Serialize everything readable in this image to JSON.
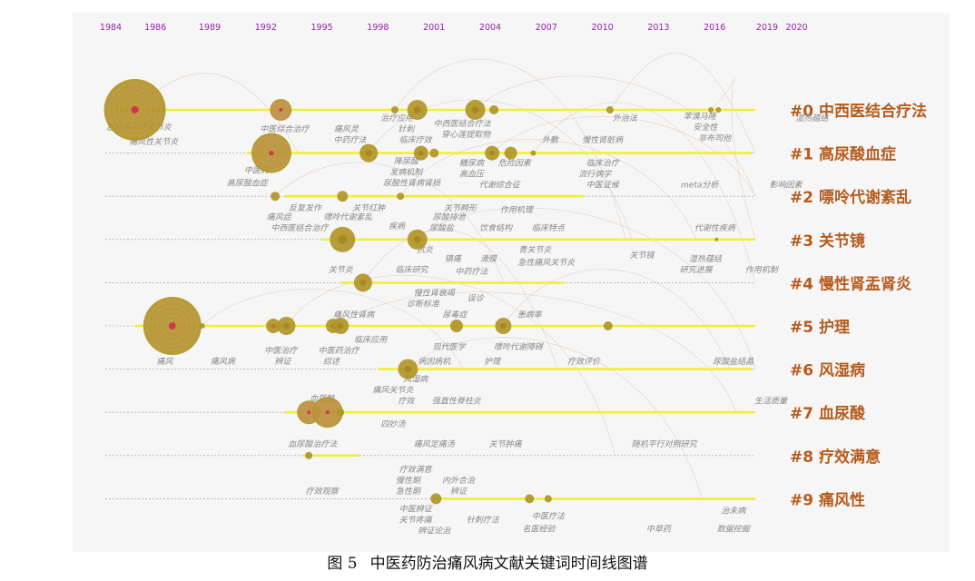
{
  "figure": {
    "caption_number": "图 5",
    "caption_text": "中医药防治痛风病文献关键词时间线图谱"
  },
  "colors": {
    "year_label": "#9a1fa8",
    "timeline": "#f0ef3a",
    "cluster_label": "#b55c1e",
    "node_fill": "#b19527",
    "node_core": "#d2374e",
    "keyword_text": "#888888",
    "link": "#d9b8a0"
  },
  "chart_data": {
    "type": "timeline",
    "years": [
      1984,
      1986,
      1989,
      1992,
      1995,
      1998,
      2001,
      2004,
      2007,
      2010,
      2013,
      2016,
      2019,
      2020
    ],
    "clusters": [
      {
        "label": "#0 中西医结合疗法",
        "start": 1984,
        "end": 2020
      },
      {
        "label": "#1 高尿酸血症",
        "start": 1991,
        "end": 2018
      },
      {
        "label": "#2 嘌呤代谢紊乱",
        "start": 1993,
        "end": 2009
      },
      {
        "label": "#3 关节镜",
        "start": 1995,
        "end": 2020
      },
      {
        "label": "#4 慢性肾盂肾炎",
        "start": 1996,
        "end": 2008
      },
      {
        "label": "#5 护理",
        "start": 1985,
        "end": 2019
      },
      {
        "label": "#6 风湿病",
        "start": 1998,
        "end": 2018
      },
      {
        "label": "#7 血尿酸",
        "start": 1993,
        "end": 2020
      },
      {
        "label": "#8 疗效满意",
        "start": 1994,
        "end": 1997
      },
      {
        "label": "#9 痛风性",
        "start": 2001,
        "end": 2020
      }
    ],
    "nodes": [
      {
        "cluster": 0,
        "year": 1985,
        "size": 34,
        "ring": true
      },
      {
        "cluster": 0,
        "year": 1992.8,
        "size": 12,
        "ring": true
      },
      {
        "cluster": 0,
        "year": 1998.9,
        "size": 4
      },
      {
        "cluster": 0,
        "year": 2000.1,
        "size": 11
      },
      {
        "cluster": 0,
        "year": 2003.2,
        "size": 11
      },
      {
        "cluster": 0,
        "year": 2004.2,
        "size": 5
      },
      {
        "cluster": 0,
        "year": 2010.4,
        "size": 4
      },
      {
        "cluster": 0,
        "year": 2016.2,
        "size": 3
      },
      {
        "cluster": 0,
        "year": 2015.8,
        "size": 3
      },
      {
        "cluster": 1,
        "year": 1992.3,
        "size": 22,
        "ring": true
      },
      {
        "cluster": 1,
        "year": 1997.5,
        "size": 10
      },
      {
        "cluster": 1,
        "year": 2000.3,
        "size": 8
      },
      {
        "cluster": 1,
        "year": 2004.1,
        "size": 8
      },
      {
        "cluster": 1,
        "year": 2005.1,
        "size": 7
      },
      {
        "cluster": 1,
        "year": 2006.3,
        "size": 3
      },
      {
        "cluster": 1,
        "year": 2001.0,
        "size": 5
      },
      {
        "cluster": 2,
        "year": 1992.5,
        "size": 5
      },
      {
        "cluster": 2,
        "year": 1996.1,
        "size": 6
      },
      {
        "cluster": 2,
        "year": 1999.2,
        "size": 4
      },
      {
        "cluster": 3,
        "year": 1996.1,
        "size": 14
      },
      {
        "cluster": 3,
        "year": 2000.1,
        "size": 11
      },
      {
        "cluster": 3,
        "year": 2016.1,
        "size": 2
      },
      {
        "cluster": 4,
        "year": 1997.2,
        "size": 10
      },
      {
        "cluster": 5,
        "year": 1987,
        "size": 32,
        "ring": true
      },
      {
        "cluster": 5,
        "year": 1988.6,
        "size": 3
      },
      {
        "cluster": 5,
        "year": 1992.4,
        "size": 8
      },
      {
        "cluster": 5,
        "year": 1993.1,
        "size": 10
      },
      {
        "cluster": 5,
        "year": 1995.6,
        "size": 8
      },
      {
        "cluster": 5,
        "year": 1996.0,
        "size": 9
      },
      {
        "cluster": 5,
        "year": 2002.2,
        "size": 7
      },
      {
        "cluster": 5,
        "year": 2004.7,
        "size": 9
      },
      {
        "cluster": 5,
        "year": 2010.3,
        "size": 5
      },
      {
        "cluster": 6,
        "year": 1999.6,
        "size": 11
      },
      {
        "cluster": 7,
        "year": 1994.3,
        "size": 13,
        "ring": true
      },
      {
        "cluster": 7,
        "year": 1995.3,
        "size": 17,
        "ring": true
      },
      {
        "cluster": 7,
        "year": 1996.0,
        "size": 4
      },
      {
        "cluster": 8,
        "year": 1994.3,
        "size": 4
      },
      {
        "cluster": 9,
        "year": 2001.1,
        "size": 6
      },
      {
        "cluster": 9,
        "year": 2006.1,
        "size": 5
      },
      {
        "cluster": 9,
        "year": 2007.1,
        "size": 4
      }
    ],
    "keywords": [
      {
        "text": "急性痛风性关节炎",
        "year": 1985.2,
        "row": 0,
        "dy": 22
      },
      {
        "text": "痛风性关节炎",
        "year": 1986.0,
        "row": 0,
        "dy": 38
      },
      {
        "text": "中医综合治疗",
        "year": 1993.0,
        "row": 0,
        "dy": 24
      },
      {
        "text": "痛风灵",
        "year": 1996.3,
        "row": 0,
        "dy": 24
      },
      {
        "text": "治疗应用",
        "year": 1999.0,
        "row": 0,
        "dy": 12
      },
      {
        "text": "针刺",
        "year": 1999.5,
        "row": 0,
        "dy": 24
      },
      {
        "text": "中西医结合疗法",
        "year": 2002.5,
        "row": 0,
        "dy": 18
      },
      {
        "text": "穿心莲提取物",
        "year": 2002.7,
        "row": 0,
        "dy": 30
      },
      {
        "text": "外治法",
        "year": 2011.2,
        "row": 0,
        "dy": 12
      },
      {
        "text": "苯溴马隆",
        "year": 2015.2,
        "row": 0,
        "dy": 10
      },
      {
        "text": "安全性",
        "year": 2015.5,
        "row": 0,
        "dy": 22
      },
      {
        "text": "非布司他",
        "year": 2016.0,
        "row": 0,
        "dy": 34
      },
      {
        "text": "湿热蕴结",
        "year": 2021.2,
        "row": 0,
        "dy": 12
      },
      {
        "text": "中药疗法",
        "year": 1996.5,
        "row": 0,
        "dy": 36
      },
      {
        "text": "临床疗效",
        "year": 2000.0,
        "row": 0,
        "dy": 36
      },
      {
        "text": "外敷",
        "year": 2007.2,
        "row": 0,
        "dy": 36
      },
      {
        "text": "慢性肾脏病",
        "year": 2010.0,
        "row": 0,
        "dy": 36
      },
      {
        "text": "中医药",
        "year": 1991.5,
        "row": 1,
        "dy": 22
      },
      {
        "text": "高尿酸血症",
        "year": 1991.0,
        "row": 1,
        "dy": 36
      },
      {
        "text": "降尿酸",
        "year": 1999.5,
        "row": 1,
        "dy": 12
      },
      {
        "text": "发病机制",
        "year": 1999.5,
        "row": 1,
        "dy": 24
      },
      {
        "text": "尿酸性肾病肾损",
        "year": 1999.8,
        "row": 1,
        "dy": 36
      },
      {
        "text": "糖尿病",
        "year": 2003.0,
        "row": 1,
        "dy": 14
      },
      {
        "text": "危险因素",
        "year": 2005.3,
        "row": 1,
        "dy": 14
      },
      {
        "text": "高血压",
        "year": 2003.0,
        "row": 1,
        "dy": 26
      },
      {
        "text": "代谢综合征",
        "year": 2004.5,
        "row": 1,
        "dy": 38
      },
      {
        "text": "临床治疗",
        "year": 2010.0,
        "row": 1,
        "dy": 14
      },
      {
        "text": "流行病学",
        "year": 2009.6,
        "row": 1,
        "dy": 26
      },
      {
        "text": "中医证候",
        "year": 2010.0,
        "row": 1,
        "dy": 38
      },
      {
        "text": "meta分析",
        "year": 2015.2,
        "row": 1,
        "dy": 38
      },
      {
        "text": "影响因素",
        "year": 2019.8,
        "row": 1,
        "dy": 38
      },
      {
        "text": "反复发作",
        "year": 1994.1,
        "row": 2,
        "dy": 16
      },
      {
        "text": "关节红肿",
        "year": 1997.5,
        "row": 2,
        "dy": 16
      },
      {
        "text": "关节畸形",
        "year": 2002.4,
        "row": 2,
        "dy": 16
      },
      {
        "text": "作用机理",
        "year": 2005.4,
        "row": 2,
        "dy": 18
      },
      {
        "text": "痛风症",
        "year": 1992.7,
        "row": 2,
        "dy": 26
      },
      {
        "text": "嘌呤代谢紊乱",
        "year": 1996.4,
        "row": 2,
        "dy": 26
      },
      {
        "text": "尿酸排泄",
        "year": 2001.8,
        "row": 2,
        "dy": 26
      },
      {
        "text": "中西医结合治疗",
        "year": 1993.8,
        "row": 2,
        "dy": 38
      },
      {
        "text": "疾病",
        "year": 1999.0,
        "row": 2,
        "dy": 36
      },
      {
        "text": "尿酸盐",
        "year": 2001.4,
        "row": 2,
        "dy": 38
      },
      {
        "text": "饮食结构",
        "year": 2004.3,
        "row": 2,
        "dy": 38
      },
      {
        "text": "临床特点",
        "year": 2007.1,
        "row": 2,
        "dy": 38
      },
      {
        "text": "代谢性疾病",
        "year": 2016.0,
        "row": 2,
        "dy": 38
      },
      {
        "text": "抗炎",
        "year": 2000.5,
        "row": 3,
        "dy": 14
      },
      {
        "text": "青关节炎",
        "year": 2006.4,
        "row": 3,
        "dy": 14
      },
      {
        "text": "关节镜",
        "year": 2012.1,
        "row": 3,
        "dy": 20
      },
      {
        "text": "镇痛",
        "year": 2002.0,
        "row": 3,
        "dy": 24
      },
      {
        "text": "滑膜",
        "year": 2003.9,
        "row": 3,
        "dy": 24
      },
      {
        "text": "急性痛风关节炎",
        "year": 2007.0,
        "row": 3,
        "dy": 28
      },
      {
        "text": "湿热蕴结",
        "year": 2015.5,
        "row": 3,
        "dy": 24
      },
      {
        "text": "关节炎",
        "year": 1996.0,
        "row": 3,
        "dy": 36
      },
      {
        "text": "临床研究",
        "year": 1999.8,
        "row": 3,
        "dy": 36
      },
      {
        "text": "中药疗法",
        "year": 2003.0,
        "row": 3,
        "dy": 38
      },
      {
        "text": "研究进展",
        "year": 2015.0,
        "row": 3,
        "dy": 36
      },
      {
        "text": "作用机制",
        "year": 2018.5,
        "row": 3,
        "dy": 36
      },
      {
        "text": "慢性肾衰竭",
        "year": 2001.0,
        "row": 4,
        "dy": 14
      },
      {
        "text": "诊断标准",
        "year": 2000.4,
        "row": 4,
        "dy": 26
      },
      {
        "text": "误诊",
        "year": 2003.2,
        "row": 4,
        "dy": 20
      },
      {
        "text": "尿毒症",
        "year": 2002.1,
        "row": 4,
        "dy": 38
      },
      {
        "text": "痛风性肾病",
        "year": 1996.7,
        "row": 4,
        "dy": 38
      },
      {
        "text": "患病率",
        "year": 2006.1,
        "row": 4,
        "dy": 38
      },
      {
        "text": "中医治疗",
        "year": 1992.8,
        "row": 5,
        "dy": 30
      },
      {
        "text": "中医药治疗",
        "year": 1995.9,
        "row": 5,
        "dy": 30
      },
      {
        "text": "临床应用",
        "year": 1997.6,
        "row": 5,
        "dy": 18
      },
      {
        "text": "现代医学",
        "year": 2001.8,
        "row": 5,
        "dy": 26
      },
      {
        "text": "嘌呤代谢障碍",
        "year": 2005.5,
        "row": 5,
        "dy": 26
      },
      {
        "text": "痛风",
        "year": 1986.6,
        "row": 5,
        "dy": 42
      },
      {
        "text": "痛风病",
        "year": 1989.7,
        "row": 5,
        "dy": 42
      },
      {
        "text": "辨证",
        "year": 1992.9,
        "row": 5,
        "dy": 42
      },
      {
        "text": "综述",
        "year": 1995.5,
        "row": 5,
        "dy": 42
      },
      {
        "text": "病因病机",
        "year": 2001.0,
        "row": 5,
        "dy": 42
      },
      {
        "text": "护理",
        "year": 2004.1,
        "row": 5,
        "dy": 42
      },
      {
        "text": "疗效评价",
        "year": 2009.0,
        "row": 5,
        "dy": 42
      },
      {
        "text": "尿酸盐结晶",
        "year": 2017.0,
        "row": 5,
        "dy": 42
      },
      {
        "text": "风湿病",
        "year": 2000.0,
        "row": 6,
        "dy": 14
      },
      {
        "text": "痛风关节炎",
        "year": 1998.8,
        "row": 6,
        "dy": 26
      },
      {
        "text": "疗效",
        "year": 1999.5,
        "row": 6,
        "dy": 38
      },
      {
        "text": "强直性脊柱炎",
        "year": 2002.2,
        "row": 6,
        "dy": 38
      },
      {
        "text": "生活质量",
        "year": 2019.0,
        "row": 6,
        "dy": 38
      },
      {
        "text": "四妙汤",
        "year": 1998.8,
        "row": 7,
        "dy": 16
      },
      {
        "text": "血尿酸",
        "year": 1995.0,
        "row": 7,
        "dy": -12
      },
      {
        "text": "血尿酸治疗法",
        "year": 1994.5,
        "row": 7,
        "dy": 38
      },
      {
        "text": "痛风定痛汤",
        "year": 2001.0,
        "row": 7,
        "dy": 38
      },
      {
        "text": "关节肿痛",
        "year": 2004.8,
        "row": 7,
        "dy": 38
      },
      {
        "text": "随机平行对照研究",
        "year": 2013.3,
        "row": 7,
        "dy": 38
      },
      {
        "text": "疗效满意",
        "year": 2000.0,
        "row": 8,
        "dy": 18
      },
      {
        "text": "慢性期",
        "year": 1999.6,
        "row": 8,
        "dy": 30
      },
      {
        "text": "内外合治",
        "year": 2002.3,
        "row": 8,
        "dy": 30
      },
      {
        "text": "疗效观察",
        "year": 1995.0,
        "row": 8,
        "dy": 42
      },
      {
        "text": "急性期",
        "year": 1999.6,
        "row": 8,
        "dy": 42
      },
      {
        "text": "辨证",
        "year": 2002.3,
        "row": 8,
        "dy": 42
      },
      {
        "text": "中医辨证",
        "year": 2000.0,
        "row": 9,
        "dy": 14
      },
      {
        "text": "关节疼痛",
        "year": 2000.0,
        "row": 9,
        "dy": 26
      },
      {
        "text": "辨证论治",
        "year": 2001.0,
        "row": 9,
        "dy": 38
      },
      {
        "text": "针刺疗法",
        "year": 2003.6,
        "row": 9,
        "dy": 26
      },
      {
        "text": "中医疗法",
        "year": 2007.1,
        "row": 9,
        "dy": 22
      },
      {
        "text": "名医经验",
        "year": 2006.6,
        "row": 9,
        "dy": 36
      },
      {
        "text": "中草药",
        "year": 2013.0,
        "row": 9,
        "dy": 36
      },
      {
        "text": "治未病",
        "year": 2017.0,
        "row": 9,
        "dy": 16
      },
      {
        "text": "数据挖掘",
        "year": 2017.0,
        "row": 9,
        "dy": 36
      }
    ]
  }
}
